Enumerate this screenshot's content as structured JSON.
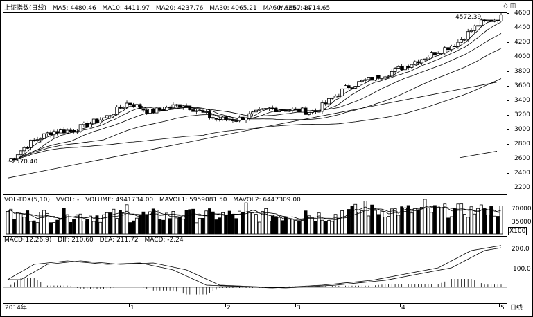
{
  "price_header": {
    "title": "上证指数(日线)",
    "ma5": "MA5: 4480.46",
    "ma10": "MA10: 4411.97",
    "ma20": "MA20: 4237.76",
    "ma30": "MA30: 4065.21",
    "ma60": "MA60: 3667.44",
    "ma250": "MA250: 2714.65"
  },
  "price_axis": [
    "4600",
    "4400",
    "4200",
    "4000",
    "3800",
    "3600",
    "3400",
    "3200",
    "3000",
    "2800",
    "2600",
    "2400",
    "2200"
  ],
  "high_annotation": "4572.39",
  "low_annotation": "2570.40",
  "volume_header": {
    "title": "VOL-TDX(5,10)",
    "vvol": "VVOL: -",
    "volume": "VOLUME: 4941734.00",
    "mavol1": "MAVOL1: 5959081.50",
    "mavol2": "MAVOL2: 6447309.00"
  },
  "volume_axis": [
    "70000",
    "35000"
  ],
  "volume_unit": "X100",
  "macd_header": {
    "title": "MACD(12,26,9)",
    "dif": "DIF: 210.60",
    "dea": "DEA: 211.72",
    "macd": "MACD: -2.24"
  },
  "macd_axis": [
    "200.0",
    "100.0"
  ],
  "x_axis": {
    "year": "2014年",
    "months": [
      "1",
      "2",
      "3",
      "4",
      "5"
    ],
    "period": "日线"
  },
  "window_icons": "◇ ◫",
  "colors": {
    "up": "#ffffff",
    "down": "#000000",
    "line": "#000000"
  }
}
